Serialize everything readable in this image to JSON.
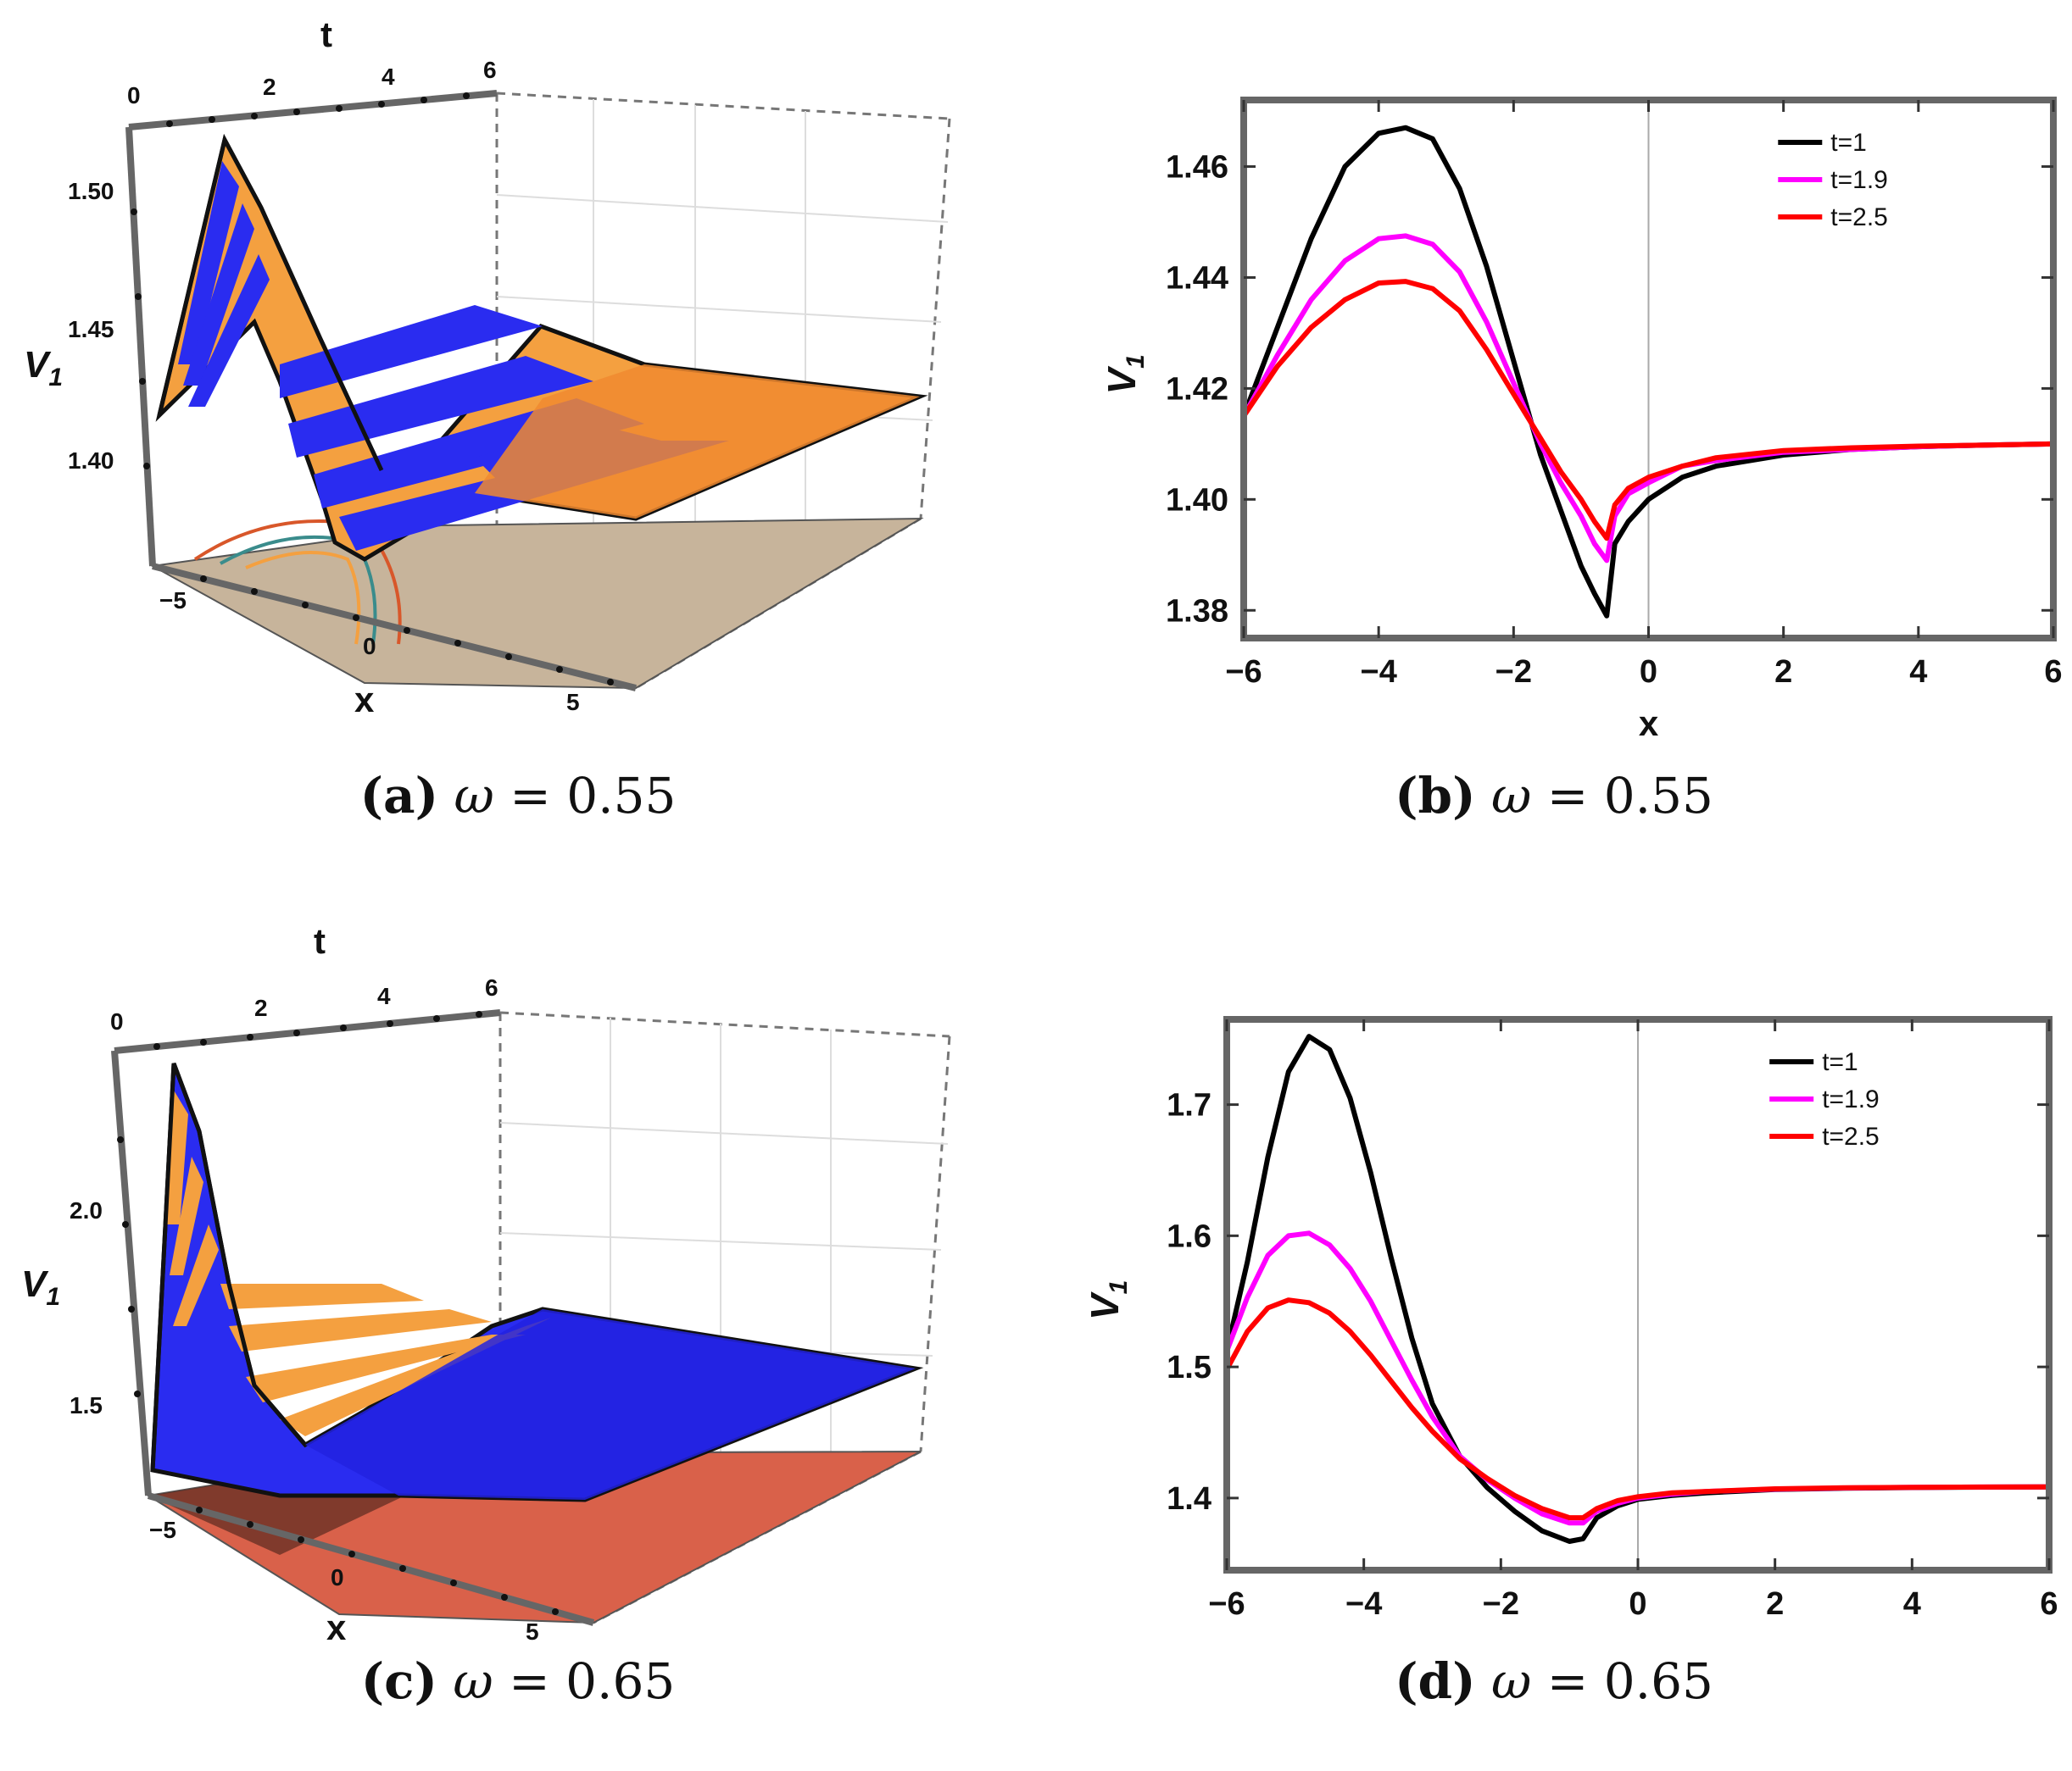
{
  "chart_data": [
    {
      "id": "a",
      "type": "surface3d",
      "caption": {
        "label": "(a)",
        "symbol": "ω",
        "text": "= 0.55"
      },
      "xlabel": "x",
      "ylabel": "t",
      "zlabel": "V",
      "zlabel_sub": "1",
      "x_ticks": [
        "−5",
        "0",
        "5"
      ],
      "t_ticks": [
        "0",
        "2",
        "4",
        "6"
      ],
      "z_ticks": [
        "1.50",
        "1.45",
        "1.40"
      ],
      "xlim": [
        -6,
        6
      ],
      "tlim": [
        0,
        6
      ],
      "zlim": [
        1.37,
        1.53
      ],
      "colors": {
        "band_blue": "#2a2cf0",
        "band_orange": "#f4a040",
        "floor": "#c7b49b"
      }
    },
    {
      "id": "b",
      "type": "line",
      "caption": {
        "label": "(b)",
        "symbol": "ω",
        "text": "= 0.55"
      },
      "xlabel": "x",
      "ylabel": "V",
      "ylabel_sub": "1",
      "xlim": [
        -6,
        6
      ],
      "ylim": [
        1.375,
        1.472
      ],
      "x_ticks": [
        -6,
        -4,
        -2,
        0,
        2,
        4,
        6
      ],
      "x_tick_labels": [
        "−6",
        "−4",
        "−2",
        "0",
        "2",
        "4",
        "6"
      ],
      "y_ticks": [
        1.38,
        1.4,
        1.42,
        1.44,
        1.46
      ],
      "y_tick_labels": [
        "1.38",
        "1.40",
        "1.42",
        "1.44",
        "1.46"
      ],
      "legend_position": "top-right",
      "series": [
        {
          "name": "t=1",
          "color": "#000000",
          "x": [
            -6,
            -5.5,
            -5,
            -4.5,
            -4,
            -3.6,
            -3.2,
            -2.8,
            -2.4,
            -2,
            -1.6,
            -1.3,
            -1,
            -0.8,
            -0.62,
            -0.5,
            -0.3,
            0,
            0.5,
            1,
            2,
            3,
            4,
            5,
            6
          ],
          "y": [
            1.415,
            1.431,
            1.447,
            1.46,
            1.466,
            1.467,
            1.465,
            1.456,
            1.442,
            1.425,
            1.408,
            1.398,
            1.388,
            1.383,
            1.379,
            1.392,
            1.396,
            1.4,
            1.404,
            1.406,
            1.408,
            1.409,
            1.4095,
            1.4098,
            1.41
          ]
        },
        {
          "name": "t=1.9",
          "color": "#ff00ff",
          "x": [
            -6,
            -5.5,
            -5,
            -4.5,
            -4,
            -3.6,
            -3.2,
            -2.8,
            -2.4,
            -2,
            -1.6,
            -1.3,
            -1,
            -0.8,
            -0.62,
            -0.5,
            -0.3,
            0,
            0.5,
            1,
            2,
            3,
            4,
            5,
            6
          ],
          "y": [
            1.415,
            1.426,
            1.436,
            1.443,
            1.447,
            1.4475,
            1.446,
            1.441,
            1.432,
            1.421,
            1.41,
            1.403,
            1.397,
            1.392,
            1.389,
            1.397,
            1.401,
            1.403,
            1.406,
            1.407,
            1.4085,
            1.409,
            1.4095,
            1.4098,
            1.41
          ]
        },
        {
          "name": "t=2.5",
          "color": "#ff0000",
          "x": [
            -6,
            -5.5,
            -5,
            -4.5,
            -4,
            -3.6,
            -3.2,
            -2.8,
            -2.4,
            -2,
            -1.6,
            -1.3,
            -1,
            -0.8,
            -0.62,
            -0.5,
            -0.3,
            0,
            0.5,
            1,
            2,
            3,
            4,
            5,
            6
          ],
          "y": [
            1.415,
            1.424,
            1.431,
            1.436,
            1.439,
            1.4393,
            1.438,
            1.434,
            1.427,
            1.419,
            1.411,
            1.405,
            1.4,
            1.396,
            1.393,
            1.399,
            1.402,
            1.404,
            1.406,
            1.4075,
            1.4088,
            1.4093,
            1.4096,
            1.4098,
            1.41
          ]
        }
      ]
    },
    {
      "id": "c",
      "type": "surface3d",
      "caption": {
        "label": "(c)",
        "symbol": "ω",
        "text": "= 0.65"
      },
      "xlabel": "x",
      "ylabel": "t",
      "zlabel": "V",
      "zlabel_sub": "1",
      "x_ticks": [
        "−5",
        "0",
        "5"
      ],
      "t_ticks": [
        "0",
        "2",
        "4",
        "6"
      ],
      "z_ticks": [
        "2.0",
        "1.5"
      ],
      "xlim": [
        -6,
        6
      ],
      "tlim": [
        0,
        6
      ],
      "zlim": [
        1.3,
        2.4
      ],
      "colors": {
        "band_blue": "#2a2cf0",
        "band_orange": "#f4a040",
        "floor": "#d9614a"
      }
    },
    {
      "id": "d",
      "type": "line",
      "caption": {
        "label": "(d)",
        "symbol": "ω",
        "text": "= 0.65"
      },
      "xlabel": "x",
      "ylabel": "V",
      "ylabel_sub": "1",
      "xlim": [
        -6,
        6
      ],
      "ylim": [
        1.345,
        1.765
      ],
      "x_ticks": [
        -6,
        -4,
        -2,
        0,
        2,
        4,
        6
      ],
      "x_tick_labels": [
        "−6",
        "−4",
        "−2",
        "0",
        "2",
        "4",
        "6"
      ],
      "y_ticks": [
        1.4,
        1.5,
        1.6,
        1.7
      ],
      "y_tick_labels": [
        "1.4",
        "1.5",
        "1.6",
        "1.7"
      ],
      "legend_position": "top-right",
      "series": [
        {
          "name": "t=1",
          "color": "#000000",
          "x": [
            -6,
            -5.7,
            -5.4,
            -5.1,
            -4.8,
            -4.5,
            -4.2,
            -3.9,
            -3.6,
            -3.3,
            -3,
            -2.6,
            -2.2,
            -1.8,
            -1.4,
            -1,
            -0.8,
            -0.6,
            -0.3,
            0,
            0.5,
            1,
            2,
            3,
            4,
            5,
            6
          ],
          "y": [
            1.512,
            1.58,
            1.66,
            1.725,
            1.752,
            1.742,
            1.705,
            1.648,
            1.583,
            1.522,
            1.472,
            1.432,
            1.408,
            1.39,
            1.375,
            1.367,
            1.369,
            1.385,
            1.394,
            1.399,
            1.402,
            1.404,
            1.4065,
            1.4075,
            1.408,
            1.4083,
            1.4085
          ]
        },
        {
          "name": "t=1.9",
          "color": "#ff00ff",
          "x": [
            -6,
            -5.7,
            -5.4,
            -5.1,
            -4.8,
            -4.5,
            -4.2,
            -3.9,
            -3.6,
            -3.3,
            -3,
            -2.6,
            -2.2,
            -1.8,
            -1.4,
            -1,
            -0.8,
            -0.6,
            -0.3,
            0,
            0.5,
            1,
            2,
            3,
            4,
            5,
            6
          ],
          "y": [
            1.512,
            1.553,
            1.585,
            1.6,
            1.602,
            1.593,
            1.575,
            1.55,
            1.52,
            1.49,
            1.462,
            1.432,
            1.414,
            1.4,
            1.388,
            1.381,
            1.381,
            1.39,
            1.396,
            1.4,
            1.403,
            1.405,
            1.4068,
            1.4077,
            1.4081,
            1.4084,
            1.4085
          ]
        },
        {
          "name": "t=2.5",
          "color": "#ff0000",
          "x": [
            -6,
            -5.7,
            -5.4,
            -5.1,
            -4.8,
            -4.5,
            -4.2,
            -3.9,
            -3.6,
            -3.3,
            -3,
            -2.6,
            -2.2,
            -1.8,
            -1.4,
            -1,
            -0.8,
            -0.6,
            -0.3,
            0,
            0.5,
            1,
            2,
            3,
            4,
            5,
            6
          ],
          "y": [
            1.498,
            1.527,
            1.545,
            1.551,
            1.549,
            1.541,
            1.527,
            1.509,
            1.489,
            1.469,
            1.451,
            1.43,
            1.415,
            1.402,
            1.392,
            1.385,
            1.385,
            1.392,
            1.398,
            1.401,
            1.404,
            1.405,
            1.407,
            1.4078,
            1.4082,
            1.4084,
            1.4085
          ]
        }
      ]
    }
  ]
}
